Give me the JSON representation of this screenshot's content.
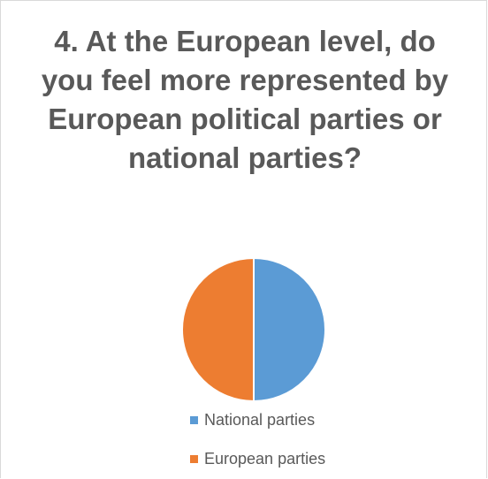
{
  "chart_data": {
    "type": "pie",
    "title": "4. At the European level, do you feel more represented by European political parties or national parties?",
    "categories": [
      "National parties",
      "European parties"
    ],
    "values": [
      50,
      50
    ],
    "colors": [
      "#5b9bd5",
      "#ed7d31"
    ],
    "legend_placement": "bottom"
  }
}
